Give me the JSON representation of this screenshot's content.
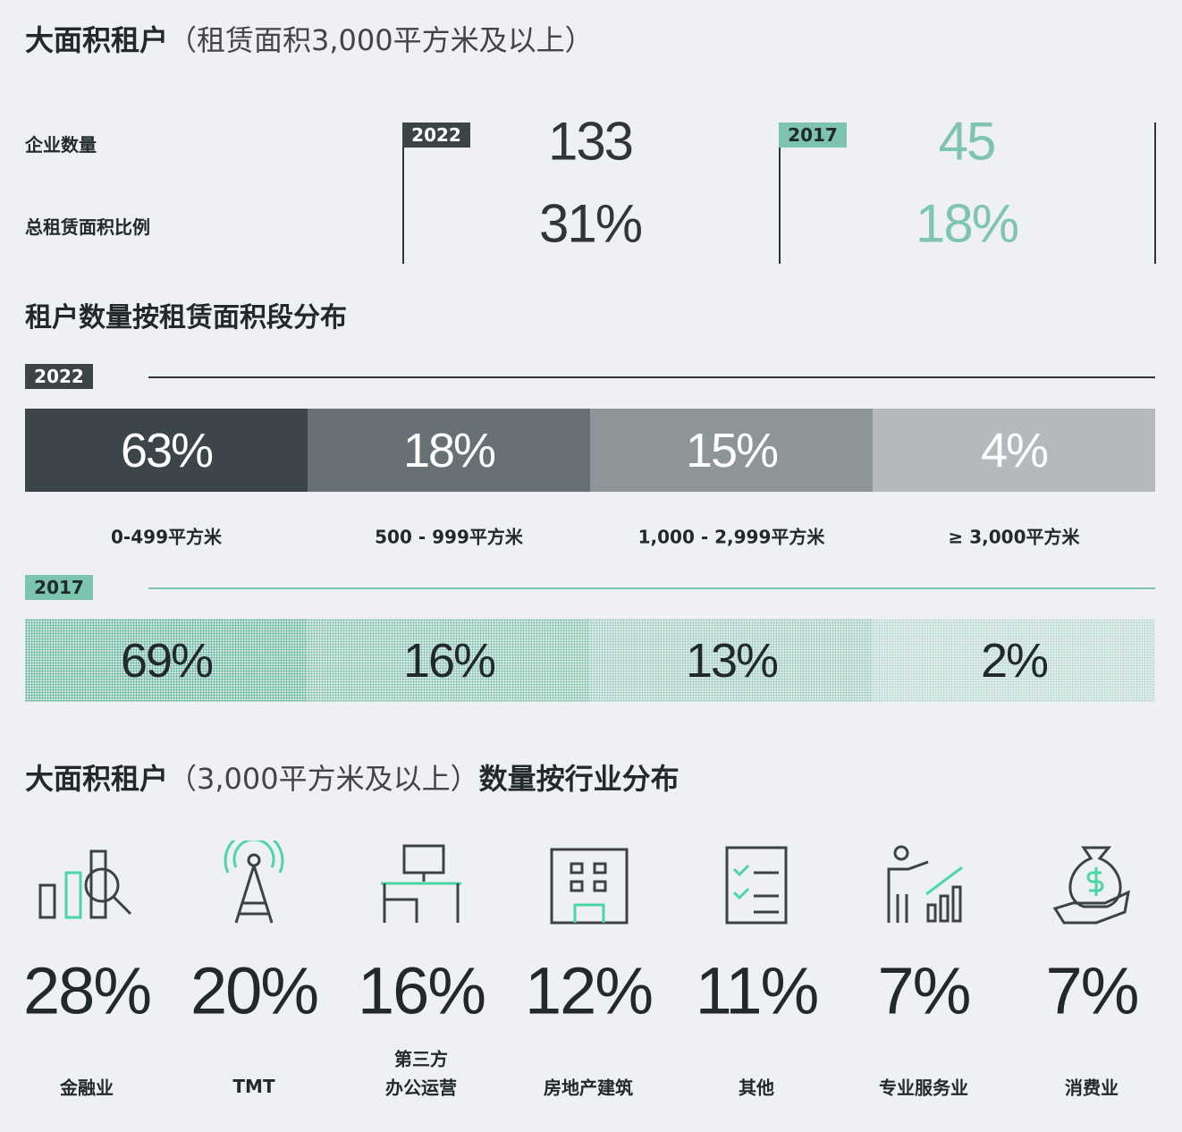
{
  "summary": {
    "title_bold": "大面积租户",
    "title_rest": "（租赁面积3,000平方米及以上）",
    "row_labels": [
      "企业数量",
      "总租赁面积比例"
    ],
    "years": [
      {
        "year": "2022",
        "values": [
          "133",
          "31%"
        ]
      },
      {
        "year": "2017",
        "values": [
          "45",
          "18%"
        ]
      }
    ]
  },
  "distribution": {
    "title": "租户数量按租赁面积段分布",
    "categories": [
      "0-499平方米",
      "500 - 999平方米",
      "1,000 - 2,999平方米",
      "≥ 3,000平方米"
    ],
    "years": [
      {
        "year": "2022",
        "values": [
          "63%",
          "18%",
          "15%",
          "4%"
        ]
      },
      {
        "year": "2017",
        "values": [
          "69%",
          "16%",
          "13%",
          "2%"
        ]
      }
    ]
  },
  "industry": {
    "title_bold_1": "大面积租户",
    "title_rest": "（3,000平方米及以上）",
    "title_bold_2": "数量按行业分布",
    "items": [
      {
        "value": "28%",
        "label": [
          "金融业"
        ]
      },
      {
        "value": "20%",
        "label": [
          "TMT"
        ]
      },
      {
        "value": "16%",
        "label": [
          "第三方",
          "办公运营"
        ]
      },
      {
        "value": "12%",
        "label": [
          "房地产建筑"
        ]
      },
      {
        "value": "11%",
        "label": [
          "其他"
        ]
      },
      {
        "value": "7%",
        "label": [
          "专业服务业"
        ]
      },
      {
        "value": "7%",
        "label": [
          "消费业"
        ]
      }
    ]
  }
}
